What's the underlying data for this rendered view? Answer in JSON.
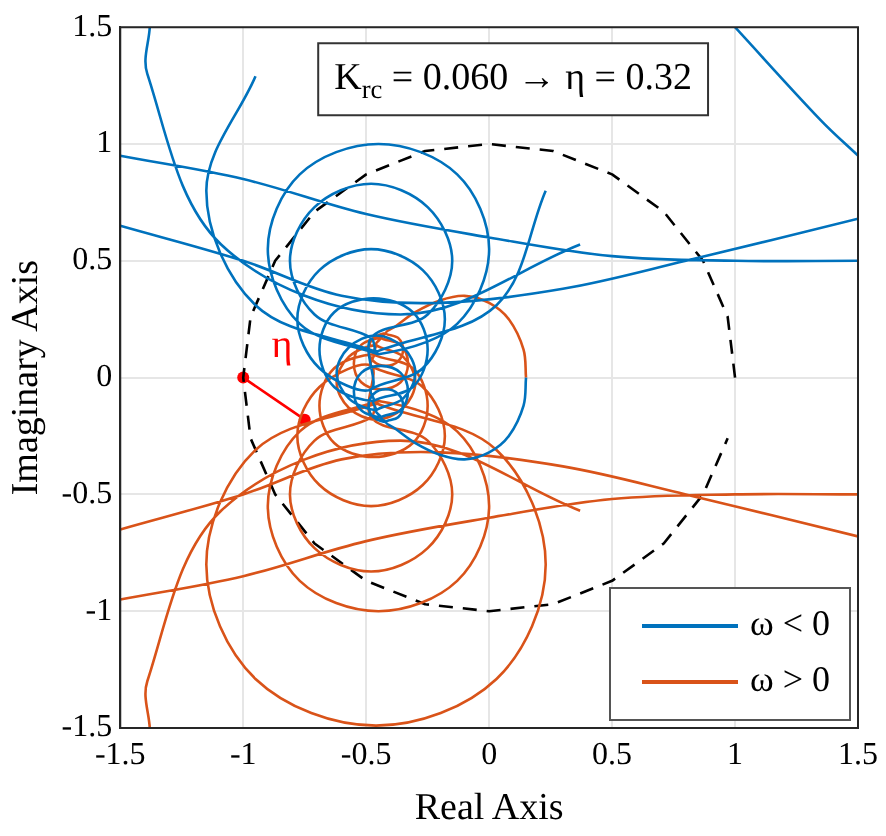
{
  "chart_data": {
    "type": "line",
    "xlabel": "Real Axis",
    "ylabel": "Imaginary Axis",
    "xlim": [
      -1.5,
      1.5
    ],
    "ylim": [
      -1.5,
      1.5
    ],
    "xticks": [
      -1.5,
      -1,
      -0.5,
      0,
      0.5,
      1,
      1.5
    ],
    "yticks": [
      -1.5,
      -1,
      -0.5,
      0,
      0.5,
      1,
      1.5
    ],
    "grid": true,
    "legend": "bottom right",
    "marker": "none",
    "line_style": "solid",
    "annotations": [
      "K$_{rc}$ = 0.060 → η = 0.32",
      "η"
    ],
    "series": [
      {
        "name": "ω < 0",
        "color": "#0072bd",
        "x": [
          0.15,
          0.14,
          0.08,
          0.0,
          -0.1,
          -0.2,
          -0.3,
          -0.38,
          -0.42,
          -0.37,
          -0.35,
          -0.37,
          -0.42,
          -0.47,
          -0.49,
          -0.47,
          -0.42,
          -0.44,
          -0.36,
          -0.33,
          -0.36,
          -0.44,
          -0.52,
          -0.55,
          -0.52,
          -0.44,
          -0.46,
          -0.35,
          -0.3,
          -0.35,
          -0.46,
          -0.57,
          -0.62,
          -0.57,
          -0.46,
          -0.47,
          -0.31,
          -0.25,
          -0.31,
          -0.47,
          -0.63,
          -0.69,
          -0.63,
          -0.47,
          -0.48,
          -0.27,
          -0.18,
          -0.27,
          -0.48,
          -0.69,
          -0.78,
          -0.69,
          -0.48,
          -0.48,
          -0.25,
          -0.15,
          -0.25,
          -0.48,
          -0.71,
          -0.81,
          -0.71,
          -0.48,
          -0.45,
          -0.13,
          0.0,
          -0.13,
          -0.45,
          -0.77,
          -0.9,
          -0.77,
          -0.45,
          -0.46,
          0.03,
          0.23,
          null,
          null,
          -0.95,
          -1.15,
          -0.95,
          -0.46,
          null,
          -1.5,
          -1.0,
          -0.6,
          -0.2,
          0.3,
          0.8,
          1.5,
          null,
          -1.5,
          -1.0,
          -0.5,
          0.0,
          0.5,
          1.0,
          1.5,
          null,
          -1.38,
          -1.39,
          -1.09,
          -0.36,
          0.37,
          null,
          null,
          null,
          1.0,
          1.35,
          1.5
        ],
        "values": [
          0.0,
          -0.12,
          -0.25,
          -0.32,
          -0.35,
          -0.33,
          -0.28,
          -0.22,
          -0.19,
          -0.17,
          -0.12,
          -0.07,
          -0.05,
          -0.07,
          -0.12,
          -0.17,
          -0.19,
          -0.17,
          -0.14,
          -0.06,
          0.02,
          0.05,
          0.02,
          -0.06,
          -0.14,
          -0.17,
          -0.14,
          -0.09,
          0.02,
          0.13,
          0.18,
          0.13,
          0.02,
          -0.09,
          -0.14,
          -0.1,
          -0.04,
          0.12,
          0.28,
          0.34,
          0.28,
          0.12,
          -0.04,
          -0.1,
          -0.05,
          0.04,
          0.25,
          0.46,
          0.55,
          0.46,
          0.25,
          0.04,
          -0.05,
          0.17,
          0.27,
          0.5,
          0.73,
          0.83,
          0.73,
          0.5,
          0.27,
          0.17,
          0.1,
          0.23,
          0.55,
          0.87,
          1.0,
          0.87,
          0.55,
          0.23,
          0.1,
          0.11,
          0.31,
          0.8,
          null,
          null,
          1.29,
          0.8,
          0.31,
          0.11,
          null,
          0.65,
          0.5,
          0.35,
          0.32,
          0.38,
          0.5,
          0.68,
          null,
          0.95,
          0.85,
          0.7,
          0.6,
          0.52,
          0.5,
          0.5,
          null,
          1.5,
          1.3,
          0.57,
          0.27,
          0.57,
          null,
          null,
          null,
          1.5,
          1.1,
          0.95
        ]
      },
      {
        "name": "ω > 0",
        "color": "#d95319",
        "x": [
          0.15,
          0.14,
          0.08,
          0.0,
          -0.1,
          -0.2,
          -0.3,
          -0.38,
          -0.42,
          -0.37,
          -0.35,
          -0.37,
          -0.42,
          -0.47,
          -0.49,
          -0.47,
          -0.42,
          -0.44,
          -0.36,
          -0.33,
          -0.36,
          -0.44,
          -0.52,
          -0.55,
          -0.52,
          -0.44,
          -0.46,
          -0.35,
          -0.3,
          -0.35,
          -0.46,
          -0.57,
          -0.62,
          -0.57,
          -0.46,
          -0.47,
          -0.31,
          -0.25,
          -0.31,
          -0.47,
          -0.63,
          -0.69,
          -0.63,
          -0.47,
          -0.48,
          -0.27,
          -0.18,
          -0.27,
          -0.48,
          -0.69,
          -0.78,
          -0.69,
          -0.48,
          -0.48,
          -0.25,
          -0.15,
          -0.25,
          -0.48,
          -0.71,
          -0.81,
          -0.71,
          -0.48,
          -0.45,
          -0.13,
          0.0,
          -0.13,
          -0.45,
          -0.77,
          -0.9,
          -0.77,
          -0.45,
          -0.46,
          0.03,
          0.23,
          0.03,
          -0.46,
          -0.95,
          -1.15,
          -0.95,
          -0.46,
          null,
          -1.5,
          -1.0,
          -0.6,
          -0.2,
          0.3,
          0.8,
          1.5,
          null,
          -1.5,
          -1.0,
          -0.5,
          0.0,
          0.5,
          1.0,
          1.5,
          null,
          -1.38,
          -1.39,
          -1.09,
          -0.36,
          0.37,
          null,
          null
        ],
        "values": [
          0.0,
          0.12,
          0.25,
          0.32,
          0.35,
          0.33,
          0.28,
          0.22,
          0.19,
          0.17,
          0.12,
          0.07,
          0.05,
          0.07,
          0.12,
          0.17,
          0.19,
          0.17,
          0.14,
          0.06,
          -0.02,
          -0.05,
          -0.02,
          0.06,
          0.14,
          0.17,
          0.14,
          0.09,
          -0.02,
          -0.13,
          -0.18,
          -0.13,
          -0.02,
          0.09,
          0.14,
          0.1,
          0.04,
          -0.12,
          -0.28,
          -0.34,
          -0.28,
          -0.12,
          0.04,
          0.1,
          0.05,
          -0.04,
          -0.25,
          -0.46,
          -0.55,
          -0.46,
          -0.25,
          -0.04,
          0.05,
          -0.17,
          -0.27,
          -0.5,
          -0.73,
          -0.83,
          -0.73,
          -0.5,
          -0.27,
          -0.17,
          -0.1,
          -0.23,
          -0.55,
          -0.87,
          -1.0,
          -0.87,
          -0.55,
          -0.23,
          -0.1,
          -0.11,
          -0.31,
          -0.8,
          -1.29,
          -1.49,
          -1.29,
          -0.8,
          -0.31,
          -0.11,
          null,
          -0.65,
          -0.5,
          -0.35,
          -0.32,
          -0.38,
          -0.5,
          -0.68,
          null,
          -0.95,
          -0.85,
          -0.7,
          -0.6,
          -0.52,
          -0.5,
          -0.5,
          null,
          -1.5,
          -1.3,
          -0.57,
          -0.27,
          -0.57,
          null,
          null
        ]
      },
      {
        "color": "#000000",
        "line_style": "dashed",
        "x": [
          1,
          0.97,
          0.87,
          0.71,
          0.5,
          0.26,
          0,
          -0.26,
          -0.5,
          -0.71,
          -0.87,
          -0.97,
          -1,
          -0.97,
          -0.87,
          -0.71,
          -0.5,
          -0.26,
          0,
          0.26,
          0.5,
          0.71,
          0.87,
          0.97
        ],
        "values": [
          0,
          0.26,
          0.5,
          0.71,
          0.87,
          0.97,
          1,
          0.97,
          0.87,
          0.71,
          0.5,
          0.26,
          0,
          -0.26,
          -0.5,
          -0.71,
          -0.87,
          -0.97,
          -1,
          -0.97,
          -0.87,
          -0.71,
          -0.5,
          -0.26
        ]
      },
      {
        "color": "#ff0000",
        "marker": "circle",
        "x": [
          -1,
          -0.75
        ],
        "values": [
          0,
          -0.18
        ]
      }
    ]
  }
}
